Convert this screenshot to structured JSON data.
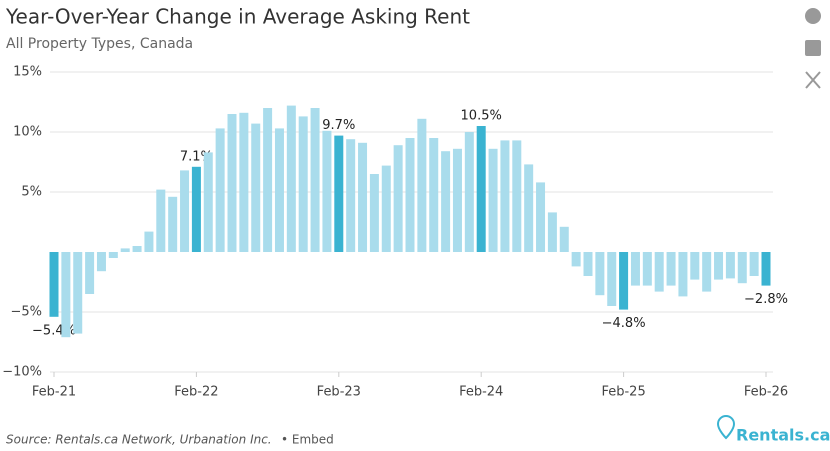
{
  "chart_data": {
    "type": "bar",
    "title": "Year-Over-Year Change in Average Asking Rent",
    "subtitle": "All Property Types, Canada",
    "source": "Source: Rentals.ca Network, Urbanation Inc.",
    "embed": "• Embed",
    "brand": "Rentals.ca",
    "categories": [
      "Feb-21",
      null,
      null,
      null,
      null,
      null,
      null,
      null,
      null,
      null,
      null,
      null,
      "Feb-22",
      null,
      null,
      null,
      null,
      null,
      null,
      null,
      null,
      null,
      null,
      null,
      "Feb-23",
      null,
      null,
      null,
      null,
      null,
      null,
      null,
      null,
      null,
      null,
      null,
      "Feb-24",
      null,
      null,
      null,
      null,
      null,
      null,
      null,
      null,
      null,
      null,
      null,
      "Feb-25",
      null,
      null,
      null,
      null,
      null,
      null,
      null,
      null,
      null,
      null,
      null,
      "Feb-26"
    ],
    "values": [
      -5.4,
      -7.1,
      -6.8,
      -3.5,
      -1.6,
      -0.5,
      0.3,
      0.5,
      1.7,
      5.2,
      4.6,
      6.8,
      7.1,
      8.3,
      10.3,
      11.5,
      11.6,
      10.7,
      12.0,
      10.3,
      12.2,
      11.3,
      12.0,
      10.1,
      9.7,
      9.4,
      9.1,
      6.5,
      7.2,
      8.9,
      9.5,
      11.1,
      9.5,
      8.4,
      8.6,
      10.0,
      10.5,
      8.6,
      9.3,
      9.3,
      7.3,
      5.8,
      3.3,
      2.1,
      -1.2,
      -2.0,
      -3.6,
      -4.5,
      -4.8,
      -2.8,
      -2.8,
      -3.3,
      -2.8,
      -3.7,
      -2.3,
      -3.3,
      -2.3,
      -2.2,
      -2.6,
      -2.0,
      -2.8
    ],
    "value_labels": [
      "−5.4%",
      null,
      null,
      null,
      null,
      null,
      null,
      null,
      null,
      null,
      null,
      null,
      "7.1%",
      null,
      null,
      null,
      null,
      null,
      null,
      null,
      null,
      null,
      null,
      null,
      "9.7%",
      null,
      null,
      null,
      null,
      null,
      null,
      null,
      null,
      null,
      null,
      null,
      "10.5%",
      null,
      null,
      null,
      null,
      null,
      null,
      null,
      null,
      null,
      null,
      null,
      "−4.8%",
      null,
      null,
      null,
      null,
      null,
      null,
      null,
      null,
      null,
      null,
      null,
      "−2.8%"
    ],
    "color": "#a9dcec",
    "highlight_color": "#3ab3d1",
    "ylim": [
      -10,
      15
    ],
    "yticks": [
      {
        "value": 15,
        "label": "15%"
      },
      {
        "value": 10,
        "label": "10%"
      },
      {
        "value": 5,
        "label": "5%"
      },
      {
        "value": -5,
        "label": "−5%"
      },
      {
        "value": -10,
        "label": "−10%"
      }
    ],
    "grid": true
  }
}
